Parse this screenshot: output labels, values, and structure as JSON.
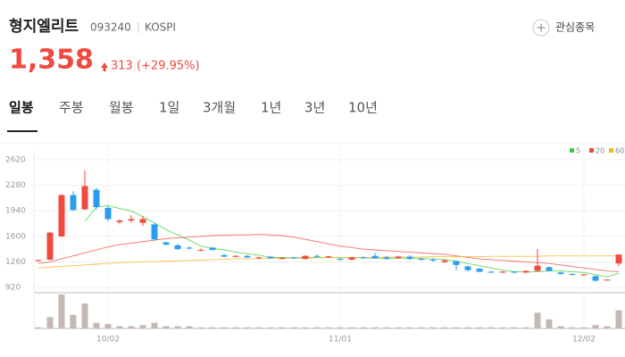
{
  "header": {
    "name": "형지엘리트",
    "code": "093240",
    "market": "KOSPI",
    "watch_button": "관심종목",
    "price": "1,358",
    "change": "313",
    "change_pct": "(+29.95%)"
  },
  "tabs": [
    "일봉",
    "주봉",
    "월봉",
    "1일",
    "3개월",
    "1년",
    "3년",
    "10년"
  ],
  "selected_tab": 0,
  "chart_data": {
    "type": "candlestick",
    "categories": [
      null,
      null,
      null,
      null,
      null,
      null,
      "10/02",
      null,
      null,
      null,
      null,
      null,
      null,
      null,
      null,
      null,
      null,
      null,
      null,
      null,
      null,
      null,
      null,
      null,
      null,
      null,
      "11/01",
      null,
      null,
      null,
      null,
      null,
      null,
      null,
      null,
      null,
      null,
      null,
      null,
      null,
      null,
      null,
      null,
      null,
      null,
      null,
      null,
      "12/02",
      null,
      null,
      null
    ],
    "open": [
      1275,
      1290,
      1600,
      2150,
      1960,
      2220,
      1980,
      1790,
      1810,
      1780,
      1760,
      1520,
      1480,
      1450,
      1410,
      1450,
      1350,
      1330,
      1340,
      1310,
      1330,
      1300,
      1320,
      1300,
      1340,
      1330,
      1300,
      1290,
      1320,
      1340,
      1320,
      1310,
      1330,
      1300,
      1290,
      1260,
      1270,
      1200,
      1170,
      1130,
      1120,
      1130,
      1120,
      1140,
      1190,
      1120,
      1100,
      1090,
      1070,
      1020,
      1240
    ],
    "high": [
      1290,
      1660,
      2160,
      2200,
      2480,
      2250,
      2000,
      1830,
      1880,
      1870,
      1770,
      1530,
      1500,
      1470,
      1440,
      1460,
      1370,
      1350,
      1350,
      1330,
      1340,
      1320,
      1330,
      1350,
      1360,
      1340,
      1310,
      1330,
      1340,
      1380,
      1340,
      1340,
      1350,
      1320,
      1310,
      1290,
      1280,
      1210,
      1180,
      1140,
      1140,
      1140,
      1150,
      1430,
      1200,
      1130,
      1110,
      1100,
      1080,
      1030,
      1358
    ],
    "low": [
      1265,
      1280,
      1590,
      1940,
      1950,
      1960,
      1800,
      1760,
      1780,
      1740,
      1540,
      1480,
      1420,
      1420,
      1400,
      1410,
      1320,
      1320,
      1310,
      1300,
      1300,
      1290,
      1300,
      1290,
      1320,
      1310,
      1280,
      1280,
      1300,
      1300,
      1290,
      1300,
      1280,
      1280,
      1260,
      1240,
      1150,
      1130,
      1120,
      1110,
      1110,
      1110,
      1110,
      1130,
      1130,
      1090,
      1080,
      1080,
      1000,
      1010,
      1200
    ],
    "close": [
      1285,
      1650,
      2150,
      1950,
      2270,
      1990,
      1830,
      1810,
      1830,
      1830,
      1560,
      1490,
      1430,
      1440,
      1420,
      1420,
      1330,
      1340,
      1320,
      1320,
      1310,
      1315,
      1310,
      1340,
      1330,
      1335,
      1290,
      1320,
      1310,
      1310,
      1300,
      1330,
      1300,
      1290,
      1280,
      1280,
      1220,
      1150,
      1130,
      1120,
      1130,
      1120,
      1140,
      1210,
      1140,
      1100,
      1090,
      1095,
      1010,
      1025,
      1358
    ],
    "volume": [
      1,
      10,
      30,
      12,
      22,
      5,
      4,
      2,
      2,
      3,
      5,
      2,
      2,
      2,
      1,
      1,
      1,
      1,
      1,
      1,
      1,
      1,
      1,
      1,
      1,
      1,
      1,
      1,
      1,
      1,
      1,
      1,
      1,
      1,
      1,
      1,
      1,
      1,
      1,
      1,
      1,
      1,
      1,
      14,
      8,
      2,
      1,
      1,
      3,
      2,
      16
    ],
    "up_color": "#f0493e",
    "down_color": "#2b9cf0",
    "volume_color": "#c4b8b4",
    "ylim": [
      850,
      2750
    ],
    "yticks": [
      920,
      1260,
      1600,
      1940,
      2280,
      2620
    ],
    "grid": true,
    "legend": "top-right",
    "series": [
      {
        "name": "5",
        "color": "#3ccf3c",
        "values": [
          null,
          null,
          null,
          null,
          1800,
          1990,
          2010,
          1970,
          1940,
          1860,
          1780,
          1690,
          1620,
          1550,
          1470,
          1440,
          1420,
          1390,
          1370,
          1350,
          1320,
          1320,
          1315,
          1320,
          1320,
          1320,
          1315,
          1315,
          1315,
          1310,
          1305,
          1310,
          1310,
          1305,
          1300,
          1290,
          1270,
          1240,
          1210,
          1180,
          1150,
          1130,
          1125,
          1130,
          1140,
          1140,
          1130,
          1120,
          1090,
          1060,
          1110
        ]
      },
      {
        "name": "20",
        "color": "#f0493e",
        "values": [
          1240,
          1260,
          1300,
          1340,
          1380,
          1420,
          1460,
          1490,
          1510,
          1530,
          1550,
          1570,
          1580,
          1590,
          1600,
          1610,
          1615,
          1620,
          1620,
          1625,
          1620,
          1610,
          1590,
          1560,
          1530,
          1500,
          1470,
          1450,
          1430,
          1420,
          1410,
          1400,
          1390,
          1380,
          1370,
          1360,
          1340,
          1320,
          1300,
          1290,
          1280,
          1270,
          1260,
          1250,
          1240,
          1220,
          1200,
          1180,
          1160,
          1140,
          1130
        ]
      },
      {
        "name": "60",
        "color": "#f5b324",
        "values": [
          1180,
          1190,
          1200,
          1210,
          1220,
          1230,
          1240,
          1250,
          1255,
          1260,
          1265,
          1270,
          1275,
          1280,
          1285,
          1290,
          1295,
          1300,
          1300,
          1305,
          1305,
          1310,
          1310,
          1310,
          1315,
          1315,
          1320,
          1320,
          1320,
          1320,
          1325,
          1325,
          1325,
          1325,
          1330,
          1330,
          1330,
          1330,
          1330,
          1335,
          1335,
          1335,
          1335,
          1335,
          1340,
          1340,
          1340,
          1340,
          1340,
          1340,
          1340
        ]
      }
    ]
  }
}
